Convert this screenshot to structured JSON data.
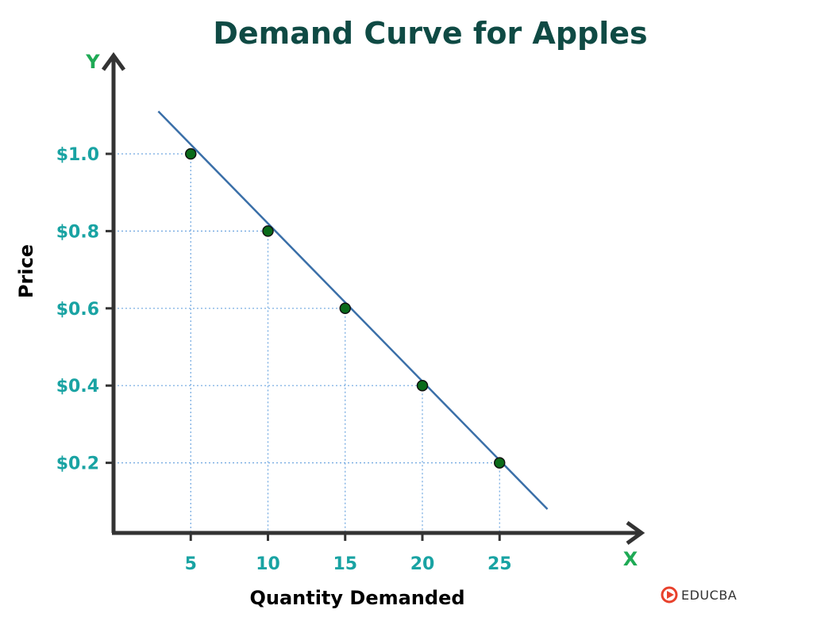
{
  "colors": {
    "title": "#0f4a44",
    "axis_letter": "#1faa55",
    "tick": "#19a3a3",
    "line": "#3a6fa8",
    "point_fill": "#0a6b1a",
    "grid": "#6fa6e0",
    "axis": "#333333",
    "logo": "#e8412c"
  },
  "chart_data": {
    "type": "line",
    "title": "Demand Curve for Apples",
    "xlabel": "Quantity Demanded",
    "ylabel": "Price",
    "x_axis_letter": "X",
    "y_axis_letter": "Y",
    "x_ticks": [
      5,
      10,
      15,
      20,
      25
    ],
    "x_tick_labels": [
      "5",
      "10",
      "15",
      "20",
      "25"
    ],
    "y_ticks": [
      0.2,
      0.4,
      0.6,
      0.8,
      1.0
    ],
    "y_tick_labels": [
      "$0.2",
      "$0.4",
      "$0.6",
      "$0.8",
      "$1.0"
    ],
    "xlim": [
      0,
      29
    ],
    "ylim": [
      0,
      1.25
    ],
    "series": [
      {
        "x": [
          5,
          10,
          15,
          20,
          25
        ],
        "y": [
          1.0,
          0.8,
          0.6,
          0.4,
          0.2
        ]
      }
    ],
    "trend_line": {
      "x": [
        2.9,
        28.1
      ],
      "y": [
        1.11,
        0.08
      ]
    },
    "grid": "dotted guides from each point to both axes"
  },
  "watermark": {
    "text": "EDUCBA",
    "icon": "educba-play-icon"
  }
}
